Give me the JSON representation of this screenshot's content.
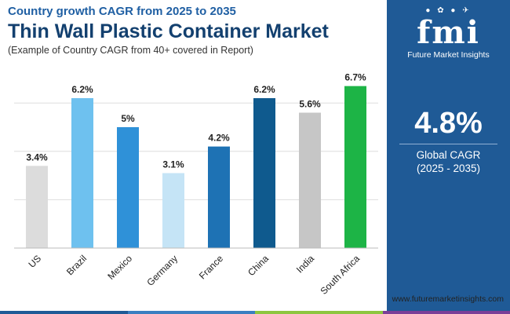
{
  "header": {
    "subtitle": "Country growth CAGR from 2025 to 2035",
    "title": "Thin Wall Plastic Container Market",
    "note": "(Example of Country CAGR from 40+ covered in Report)"
  },
  "brand": {
    "logo_mark": "fmi",
    "logo_text": "Future Market Insights",
    "website": "www.futuremarketinsights.com"
  },
  "summary": {
    "value": "4.8%",
    "label": "Global CAGR",
    "period": "(2025 - 2035)"
  },
  "colors": {
    "title": "#13406f",
    "subtitle": "#1f5fa3",
    "panel": "#1f5a96",
    "footer": [
      "#1f5a96",
      "#3a7fc1",
      "#8dc63f",
      "#7b3f98"
    ]
  },
  "chart_data": {
    "type": "bar",
    "categories": [
      "US",
      "Brazil",
      "Mexico",
      "Germany",
      "France",
      "China",
      "India",
      "South Africa"
    ],
    "values": [
      3.4,
      6.2,
      5.0,
      3.1,
      4.2,
      6.2,
      5.6,
      6.7
    ],
    "data_labels": [
      "3.4%",
      "6.2%",
      "5%",
      "3.1%",
      "4.2%",
      "6.2%",
      "5.6%",
      "6.7%"
    ],
    "bar_colors": [
      "#dcdcdc",
      "#6ec1ef",
      "#2f91d8",
      "#c5e4f6",
      "#1e72b4",
      "#0f5a8e",
      "#c6c6c6",
      "#1db446"
    ],
    "ylim": [
      0,
      7.5
    ],
    "grid": true,
    "legend": "none"
  }
}
